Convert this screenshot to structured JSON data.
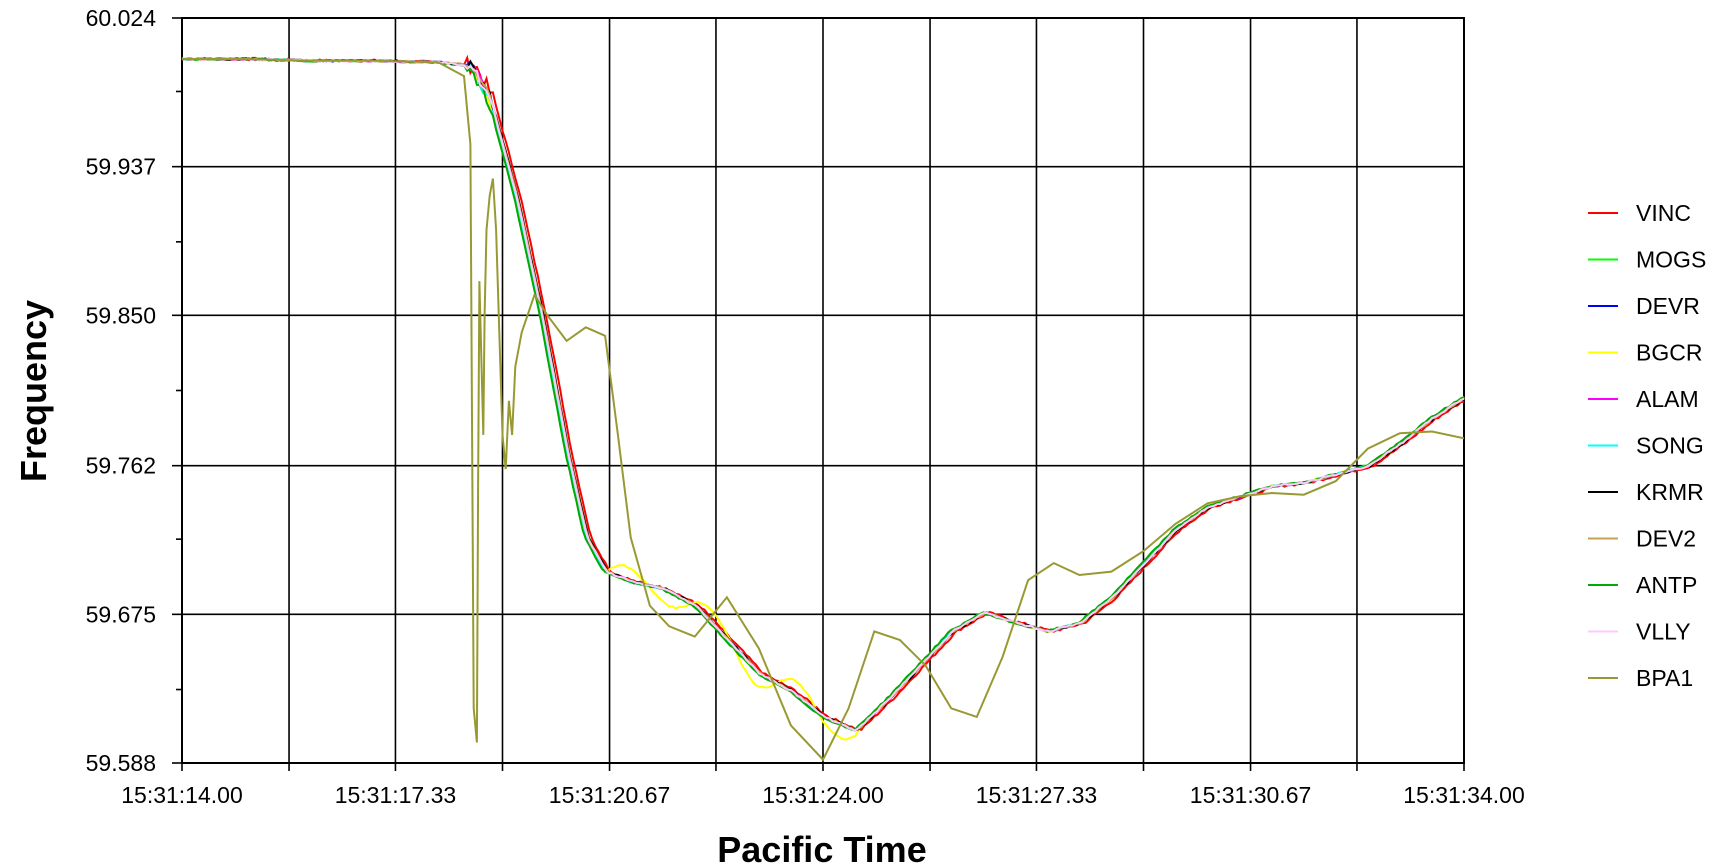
{
  "chart_data": {
    "type": "line",
    "title": "",
    "xlabel": "Pacific Time",
    "ylabel": "Frequency",
    "xlim": [
      0,
      20
    ],
    "ylim": [
      59.588,
      60.024
    ],
    "x_ticks": [
      {
        "value": 0,
        "label": "15:31:14.00"
      },
      {
        "value": 3.33,
        "label": "15:31:17.33"
      },
      {
        "value": 6.67,
        "label": "15:31:20.67"
      },
      {
        "value": 10,
        "label": "15:31:24.00"
      },
      {
        "value": 13.33,
        "label": "15:31:27.33"
      },
      {
        "value": 16.67,
        "label": "15:31:30.67"
      },
      {
        "value": 20,
        "label": "15:31:34.00"
      }
    ],
    "x_minor_gridlines": [
      1.67,
      5,
      8.33,
      11.67,
      15,
      18.33
    ],
    "y_ticks": [
      {
        "value": 60.024,
        "label": "60.024"
      },
      {
        "value": 59.937,
        "label": "59.937"
      },
      {
        "value": 59.85,
        "label": "59.850"
      },
      {
        "value": 59.762,
        "label": "59.762"
      },
      {
        "value": 59.675,
        "label": "59.675"
      },
      {
        "value": 59.588,
        "label": "59.588"
      }
    ],
    "y_minor_ticks": [
      59.981,
      59.893,
      59.806,
      59.719,
      59.631
    ],
    "grid": true,
    "legend_position": "right",
    "base_curve": {
      "x": [
        0,
        1,
        2,
        3,
        4,
        4.5,
        4.8,
        5.2,
        5.6,
        6.0,
        6.3,
        6.6,
        7.0,
        7.5,
        8.0,
        8.5,
        9.0,
        9.5,
        10.0,
        10.5,
        11.0,
        11.5,
        12.0,
        12.5,
        13.0,
        13.5,
        14.0,
        14.5,
        15.0,
        15.5,
        16.0,
        16.5,
        17.0,
        17.5,
        18.0,
        18.5,
        19.0,
        19.5,
        20.0
      ],
      "y": [
        60.0,
        60.0,
        59.999,
        59.999,
        59.998,
        59.996,
        59.975,
        59.92,
        59.85,
        59.77,
        59.72,
        59.7,
        59.694,
        59.69,
        59.68,
        59.66,
        59.64,
        59.63,
        59.615,
        59.607,
        59.625,
        59.645,
        59.665,
        59.676,
        59.67,
        59.665,
        59.67,
        59.685,
        59.705,
        59.725,
        59.738,
        59.744,
        59.75,
        59.752,
        59.757,
        59.762,
        59.775,
        59.79,
        59.802
      ]
    },
    "series": [
      {
        "name": "VINC",
        "color": "#ff0000",
        "shift": 0.08,
        "noise": 0.0015,
        "wobble": 0
      },
      {
        "name": "MOGS",
        "color": "#00ff00",
        "shift": 0.0,
        "noise": 0.001,
        "wobble": 0
      },
      {
        "name": "DEVR",
        "color": "#0000ff",
        "shift": 0.02,
        "noise": 0.001,
        "wobble": 0
      },
      {
        "name": "BGCR",
        "color": "#ffff00",
        "shift": 0.0,
        "noise": 0.001,
        "wobble": 1
      },
      {
        "name": "ALAM",
        "color": "#ff00ff",
        "shift": 0.03,
        "noise": 0.001,
        "wobble": 0
      },
      {
        "name": "SONG",
        "color": "#00ffff",
        "shift": 0.01,
        "noise": 0.001,
        "wobble": 0
      },
      {
        "name": "KRMR",
        "color": "#000000",
        "shift": 0.04,
        "noise": 0.001,
        "wobble": 0
      },
      {
        "name": "DEV2",
        "color": "#c8a050",
        "shift": 0.03,
        "noise": 0.001,
        "wobble": 0
      },
      {
        "name": "ANTP",
        "color": "#00aa00",
        "shift": -0.02,
        "noise": 0.001,
        "wobble": 0
      },
      {
        "name": "VLLY",
        "color": "#ffc8ff",
        "shift": 0.02,
        "noise": 0.001,
        "wobble": 0
      },
      {
        "name": "BPA1",
        "color": "#999933",
        "shift": 0.0,
        "noise": 0.0,
        "wobble": 0,
        "x": [
          0,
          1,
          2,
          3,
          4,
          4.4,
          4.5,
          4.55,
          4.6,
          4.62,
          4.64,
          4.7,
          4.72,
          4.75,
          4.8,
          4.85,
          4.9,
          4.95,
          5.0,
          5.05,
          5.1,
          5.15,
          5.2,
          5.3,
          5.5,
          5.7,
          6.0,
          6.3,
          6.6,
          6.8,
          7.0,
          7.3,
          7.6,
          8.0,
          8.5,
          9.0,
          9.5,
          10.0,
          10.4,
          10.8,
          11.2,
          11.6,
          12.0,
          12.4,
          12.8,
          13.2,
          13.6,
          14.0,
          14.5,
          15.0,
          15.5,
          16.0,
          16.5,
          17.0,
          17.5,
          18.0,
          18.5,
          19.0,
          19.5,
          20.0
        ],
        "y": [
          60.0,
          60.0,
          59.999,
          59.999,
          59.998,
          59.99,
          59.95,
          59.62,
          59.6,
          59.75,
          59.87,
          59.78,
          59.85,
          59.9,
          59.92,
          59.93,
          59.9,
          59.84,
          59.78,
          59.76,
          59.8,
          59.78,
          59.82,
          59.84,
          59.862,
          59.85,
          59.835,
          59.843,
          59.838,
          59.78,
          59.72,
          59.68,
          59.668,
          59.662,
          59.685,
          59.655,
          59.61,
          59.59,
          59.62,
          59.665,
          59.66,
          59.645,
          59.62,
          59.615,
          59.65,
          59.695,
          59.705,
          59.698,
          59.7,
          59.712,
          59.728,
          59.74,
          59.744,
          59.746,
          59.745,
          59.753,
          59.772,
          59.781,
          59.782,
          59.778
        ]
      }
    ]
  }
}
